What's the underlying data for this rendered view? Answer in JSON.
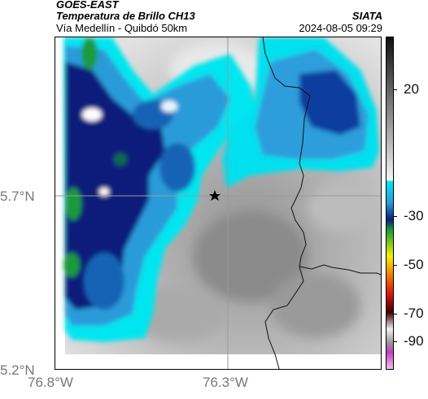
{
  "header": {
    "satellite": "GOES-EAST",
    "product": "Temperatura de Brillo CH13",
    "agency": "SIATA",
    "route": "Vía Medellín - Quibdó 50km",
    "timestamp": "2024-08-05 09:29"
  },
  "map": {
    "lat_labels": [
      "5.7°N",
      "5.2°N"
    ],
    "lon_labels": [
      "76.8°W",
      "76.3°W"
    ],
    "marker": "star-icon",
    "gridlines": true,
    "border_color": "#000000"
  },
  "colorbar": {
    "labels": [
      "20",
      "-30",
      "-50",
      "-70",
      "-90"
    ],
    "colors": {
      "warm_top": "#101010",
      "warm_bottom": "#f4f4f4",
      "cyan": "#00e6f0",
      "light_blue": "#2a9bd9",
      "dark_blue": "#0a1e7a",
      "green": "#1a9a3a",
      "yellow": "#f0f000",
      "orange": "#f07800",
      "red": "#d01010",
      "dark_red": "#400000",
      "magenta": "#c040c0"
    }
  }
}
